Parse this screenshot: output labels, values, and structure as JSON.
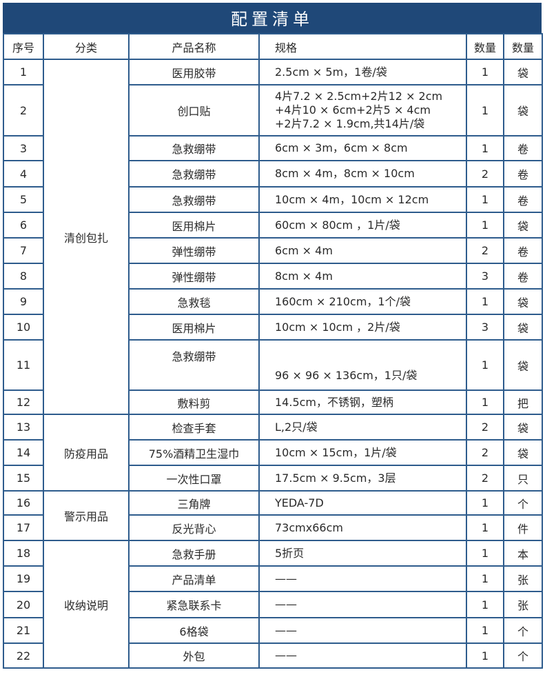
{
  "title": "配置清单",
  "headers": [
    "序号",
    "分类",
    "产品名称",
    "规格",
    "数量",
    "数量"
  ],
  "categories": [
    "清创包扎",
    "防疫用品",
    "警示用品",
    "收纳说明"
  ],
  "rows": [
    [
      "1",
      "医用胶带",
      "2.5cm × 5m，1卷/袋",
      "1",
      "袋"
    ],
    [
      "2",
      "创口贴",
      "4片7.2 × 2.5cm+2片12 × 2cm\n+4片10 × 6cm+2片5 × 4cm\n+2片7.2 × 1.9cm,共14片/袋",
      "1",
      "袋"
    ],
    [
      "3",
      "急救绷带",
      "6cm × 3m，6cm × 8cm",
      "1",
      "卷"
    ],
    [
      "4",
      "急救绷带",
      "8cm × 4m，8cm × 10cm",
      "2",
      "卷"
    ],
    [
      "5",
      "急救绷带",
      "10cm × 4m，10cm × 12cm",
      "1",
      "卷"
    ],
    [
      "6",
      "医用棉片",
      "60cm × 80cm ，1片/袋",
      "1",
      "袋"
    ],
    [
      "7",
      "弹性绷带",
      "6cm × 4m",
      "2",
      "卷"
    ],
    [
      "8",
      "弹性绷带",
      "8cm × 4m",
      "3",
      "卷"
    ],
    [
      "9",
      "急救毯",
      "160cm × 210cm，1个/袋",
      "1",
      "袋"
    ],
    [
      "10",
      "医用棉片",
      "10cm × 10cm ，2片/袋",
      "3",
      "袋"
    ],
    [
      "11",
      "急救绷带",
      "96 × 96 × 136cm，1只/袋",
      "1",
      "袋"
    ],
    [
      "12",
      "敷料剪",
      "14.5cm，不锈钢，塑柄",
      "1",
      "把"
    ],
    [
      "13",
      "检查手套",
      "L,2只/袋",
      "2",
      "袋"
    ],
    [
      "14",
      "75%酒精卫生湿巾",
      "10cm × 15cm，1片/袋",
      "2",
      "袋"
    ],
    [
      "15",
      "一次性口罩",
      "17.5cm × 9.5cm，3层",
      "2",
      "只"
    ],
    [
      "16",
      "三角牌",
      "YEDA-7D",
      "1",
      "个"
    ],
    [
      "17",
      "反光背心",
      "73cmx66cm",
      "1",
      "件"
    ],
    [
      "18",
      "急救手册",
      "5折页",
      "1",
      "本"
    ],
    [
      "19",
      "产品清单",
      "——",
      "1",
      "张"
    ],
    [
      "20",
      "紧急联系卡",
      "——",
      "1",
      "张"
    ],
    [
      "21",
      "6格袋",
      "——",
      "1",
      "个"
    ],
    [
      "22",
      "外包",
      "——",
      "1",
      "个"
    ]
  ]
}
